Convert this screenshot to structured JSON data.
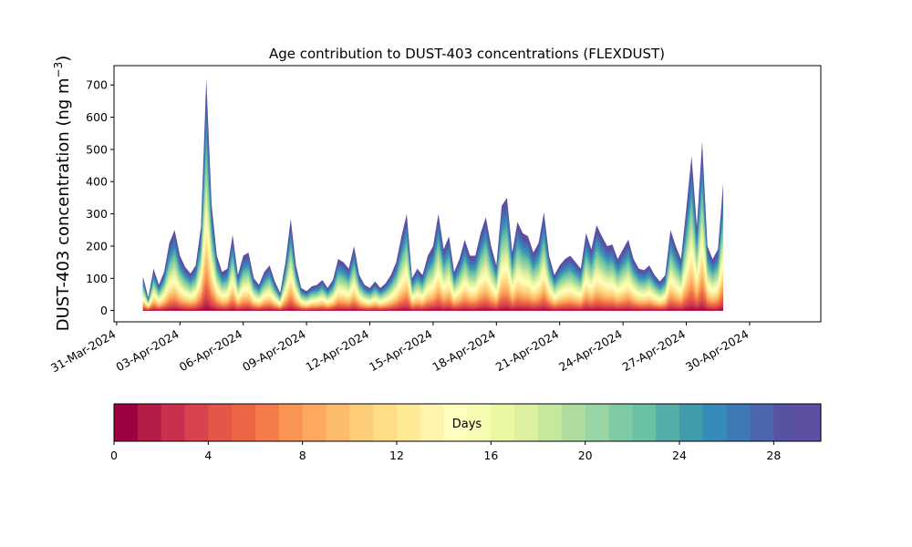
{
  "chart_data": {
    "type": "area",
    "title": "Age contribution to DUST-403 concentrations (FLEXDUST)",
    "ylabel_main": "DUST-403 concentration (ng m",
    "ylabel_sup": "−3",
    "ylabel_close": ")",
    "xlabel": "",
    "ylim": [
      -35,
      760
    ],
    "yticks": [
      0,
      100,
      200,
      300,
      400,
      500,
      600,
      700
    ],
    "xlim": [
      "2024-03-30T21:00",
      "2024-05-03T09:00"
    ],
    "xticks": [
      "31-Mar-2024",
      "03-Apr-2024",
      "06-Apr-2024",
      "09-Apr-2024",
      "12-Apr-2024",
      "15-Apr-2024",
      "18-Apr-2024",
      "21-Apr-2024",
      "24-Apr-2024",
      "27-Apr-2024",
      "30-Apr-2024"
    ],
    "grid": false,
    "colorbar": {
      "label": "Days",
      "min": 0,
      "max": 30,
      "bins": 30,
      "ticks": [
        0,
        4,
        8,
        12,
        16,
        20,
        24,
        28
      ],
      "colors": [
        "#9e0142",
        "#b41b47",
        "#c9304d",
        "#d8434e",
        "#e4554a",
        "#ed6545",
        "#f47b4b",
        "#f99455",
        "#fca95f",
        "#fdbc6b",
        "#fecd7a",
        "#fedc88",
        "#fee996",
        "#fff4ab",
        "#fffebe",
        "#f7fbb1",
        "#ecf7a2",
        "#dcf09f",
        "#c6e89e",
        "#afdd9f",
        "#98d4a4",
        "#80cba4",
        "#6ac2a5",
        "#55ada9",
        "#429aad",
        "#378bbb",
        "#3f78b5",
        "#4b66ac",
        "#5752a2",
        "#5e4fa2"
      ]
    },
    "series_note": "stacked age bins 0–30 days; total concentration envelope below (date, ng m-3), with fraction contributed by young ages (0–2 days)",
    "total": [
      [
        "2024-04-01T06:00",
        105
      ],
      [
        "2024-04-01T12:00",
        40
      ],
      [
        "2024-04-01T18:00",
        130
      ],
      [
        "2024-04-02T00:00",
        80
      ],
      [
        "2024-04-02T06:00",
        120
      ],
      [
        "2024-04-02T12:00",
        210
      ],
      [
        "2024-04-02T18:00",
        250
      ],
      [
        "2024-04-03T00:00",
        170
      ],
      [
        "2024-04-03T06:00",
        135
      ],
      [
        "2024-04-03T12:00",
        115
      ],
      [
        "2024-04-03T18:00",
        140
      ],
      [
        "2024-04-04T00:00",
        260
      ],
      [
        "2024-04-04T06:00",
        720
      ],
      [
        "2024-04-04T12:00",
        330
      ],
      [
        "2024-04-04T18:00",
        170
      ],
      [
        "2024-04-05T00:00",
        120
      ],
      [
        "2024-04-05T06:00",
        130
      ],
      [
        "2024-04-05T12:00",
        235
      ],
      [
        "2024-04-05T18:00",
        110
      ],
      [
        "2024-04-06T00:00",
        170
      ],
      [
        "2024-04-06T06:00",
        180
      ],
      [
        "2024-04-06T12:00",
        100
      ],
      [
        "2024-04-06T18:00",
        80
      ],
      [
        "2024-04-07T00:00",
        120
      ],
      [
        "2024-04-07T06:00",
        140
      ],
      [
        "2024-04-07T12:00",
        90
      ],
      [
        "2024-04-07T18:00",
        55
      ],
      [
        "2024-04-08T00:00",
        150
      ],
      [
        "2024-04-08T06:00",
        285
      ],
      [
        "2024-04-08T12:00",
        140
      ],
      [
        "2024-04-08T18:00",
        70
      ],
      [
        "2024-04-09T00:00",
        60
      ],
      [
        "2024-04-09T06:00",
        75
      ],
      [
        "2024-04-09T12:00",
        80
      ],
      [
        "2024-04-09T18:00",
        95
      ],
      [
        "2024-04-10T00:00",
        70
      ],
      [
        "2024-04-10T06:00",
        95
      ],
      [
        "2024-04-10T12:00",
        160
      ],
      [
        "2024-04-10T18:00",
        150
      ],
      [
        "2024-04-11T00:00",
        130
      ],
      [
        "2024-04-11T06:00",
        200
      ],
      [
        "2024-04-11T12:00",
        110
      ],
      [
        "2024-04-11T18:00",
        80
      ],
      [
        "2024-04-12T00:00",
        70
      ],
      [
        "2024-04-12T06:00",
        90
      ],
      [
        "2024-04-12T12:00",
        70
      ],
      [
        "2024-04-12T18:00",
        85
      ],
      [
        "2024-04-13T00:00",
        110
      ],
      [
        "2024-04-13T06:00",
        150
      ],
      [
        "2024-04-13T12:00",
        230
      ],
      [
        "2024-04-13T18:00",
        300
      ],
      [
        "2024-04-14T00:00",
        100
      ],
      [
        "2024-04-14T06:00",
        130
      ],
      [
        "2024-04-14T12:00",
        110
      ],
      [
        "2024-04-14T18:00",
        170
      ],
      [
        "2024-04-15T00:00",
        200
      ],
      [
        "2024-04-15T06:00",
        300
      ],
      [
        "2024-04-15T12:00",
        190
      ],
      [
        "2024-04-15T18:00",
        230
      ],
      [
        "2024-04-16T00:00",
        120
      ],
      [
        "2024-04-16T06:00",
        160
      ],
      [
        "2024-04-16T12:00",
        220
      ],
      [
        "2024-04-16T18:00",
        170
      ],
      [
        "2024-04-17T00:00",
        170
      ],
      [
        "2024-04-17T06:00",
        240
      ],
      [
        "2024-04-17T12:00",
        290
      ],
      [
        "2024-04-17T18:00",
        200
      ],
      [
        "2024-04-18T00:00",
        140
      ],
      [
        "2024-04-18T06:00",
        325
      ],
      [
        "2024-04-18T12:00",
        350
      ],
      [
        "2024-04-18T18:00",
        180
      ],
      [
        "2024-04-19T00:00",
        275
      ],
      [
        "2024-04-19T06:00",
        240
      ],
      [
        "2024-04-19T12:00",
        230
      ],
      [
        "2024-04-19T18:00",
        180
      ],
      [
        "2024-04-20T00:00",
        210
      ],
      [
        "2024-04-20T06:00",
        305
      ],
      [
        "2024-04-20T12:00",
        170
      ],
      [
        "2024-04-20T18:00",
        110
      ],
      [
        "2024-04-21T00:00",
        140
      ],
      [
        "2024-04-21T06:00",
        160
      ],
      [
        "2024-04-21T12:00",
        170
      ],
      [
        "2024-04-21T18:00",
        150
      ],
      [
        "2024-04-22T00:00",
        130
      ],
      [
        "2024-04-22T06:00",
        240
      ],
      [
        "2024-04-22T12:00",
        190
      ],
      [
        "2024-04-22T18:00",
        265
      ],
      [
        "2024-04-23T00:00",
        230
      ],
      [
        "2024-04-23T06:00",
        200
      ],
      [
        "2024-04-23T12:00",
        205
      ],
      [
        "2024-04-23T18:00",
        160
      ],
      [
        "2024-04-24T00:00",
        190
      ],
      [
        "2024-04-24T06:00",
        220
      ],
      [
        "2024-04-24T12:00",
        160
      ],
      [
        "2024-04-24T18:00",
        130
      ],
      [
        "2024-04-25T00:00",
        125
      ],
      [
        "2024-04-25T06:00",
        140
      ],
      [
        "2024-04-25T12:00",
        110
      ],
      [
        "2024-04-25T18:00",
        90
      ],
      [
        "2024-04-26T00:00",
        110
      ],
      [
        "2024-04-26T06:00",
        250
      ],
      [
        "2024-04-26T12:00",
        200
      ],
      [
        "2024-04-26T18:00",
        160
      ],
      [
        "2024-04-27T00:00",
        315
      ],
      [
        "2024-04-27T06:00",
        480
      ],
      [
        "2024-04-27T12:00",
        260
      ],
      [
        "2024-04-27T18:00",
        525
      ],
      [
        "2024-04-28T00:00",
        200
      ],
      [
        "2024-04-28T06:00",
        160
      ],
      [
        "2024-04-28T12:00",
        190
      ],
      [
        "2024-04-28T18:00",
        395
      ]
    ]
  }
}
